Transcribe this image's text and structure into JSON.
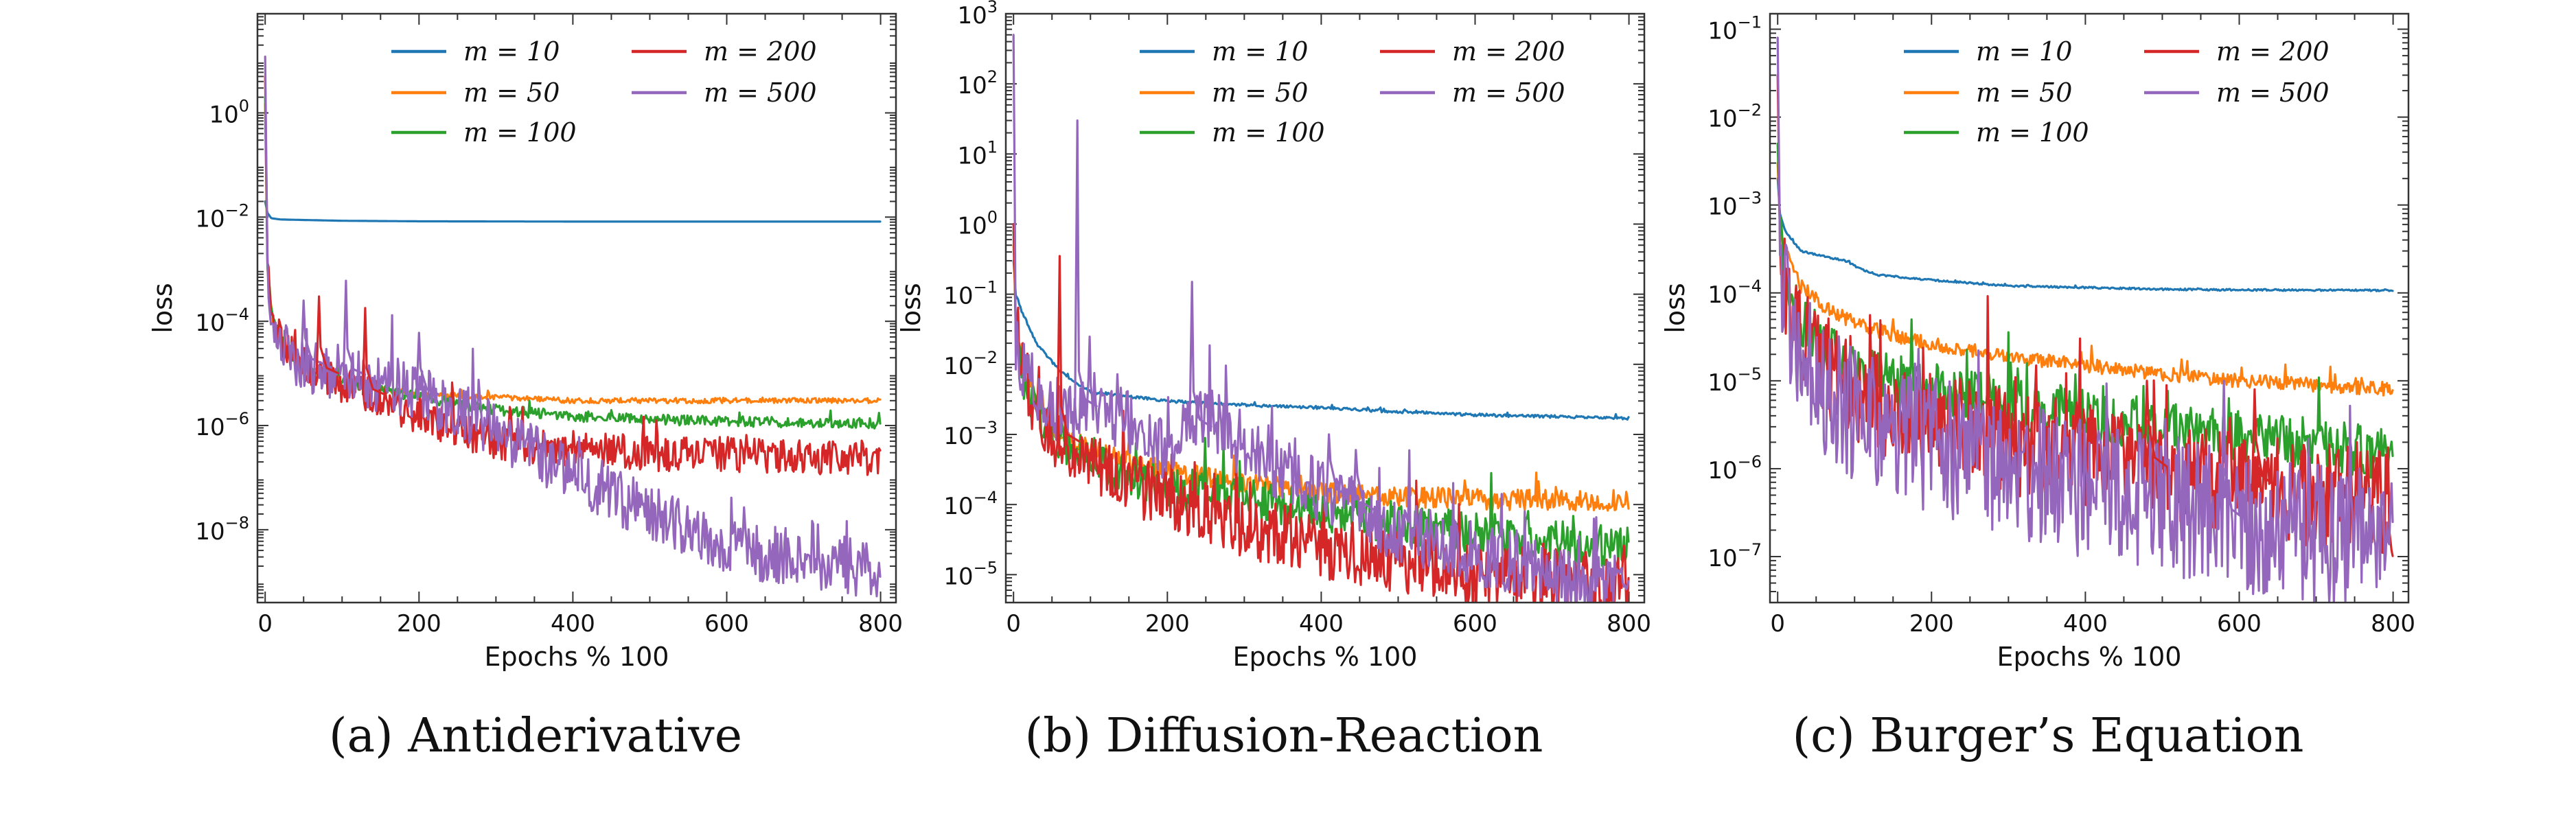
{
  "colors": {
    "m10": "#1f77b4",
    "m50": "#ff7f0e",
    "m100": "#2ca02c",
    "m200": "#d62728",
    "m500": "#9467bd"
  },
  "chart_data": [
    {
      "type": "line",
      "caption": "(a) Antiderivative",
      "xlabel": "Epochs % 100",
      "ylabel": "loss",
      "yscale": "log",
      "xlim": [
        -10,
        820
      ],
      "ylim": [
        4e-10,
        80
      ],
      "xticks": [
        0,
        200,
        400,
        600,
        800
      ],
      "yticks": [
        {
          "exp": 0,
          "label": "10"
        },
        {
          "exp": -2,
          "label": "10"
        },
        {
          "exp": -4,
          "label": "10"
        },
        {
          "exp": -6,
          "label": "10"
        },
        {
          "exp": -8,
          "label": "10"
        }
      ],
      "series": [
        {
          "name": "m = 10",
          "color": "#1f77b4",
          "noise": 0,
          "x": [
            0,
            3,
            8,
            20,
            50,
            100,
            200,
            400,
            600,
            800
          ],
          "y": [
            0.02,
            0.012,
            0.0095,
            0.009,
            0.0088,
            0.0085,
            0.0083,
            0.0082,
            0.0082,
            0.0082
          ]
        },
        {
          "name": "m = 50",
          "color": "#ff7f0e",
          "noise": 0.05,
          "x": [
            0,
            3,
            10,
            30,
            60,
            100,
            150,
            200,
            300,
            400,
            500,
            600,
            800
          ],
          "y": [
            1.5,
            0.001,
            0.0001,
            2.5e-05,
            1.2e-05,
            7e-06,
            5e-06,
            4e-06,
            3.5e-06,
            3e-06,
            3e-06,
            3e-06,
            3e-06
          ]
        },
        {
          "name": "m = 100",
          "color": "#2ca02c",
          "noise": 0.1,
          "x": [
            0,
            3,
            10,
            30,
            60,
            100,
            150,
            200,
            300,
            400,
            500,
            600,
            800
          ],
          "y": [
            2,
            0.001,
            0.0001,
            2.5e-05,
            1.2e-05,
            7e-06,
            5e-06,
            3.5e-06,
            2e-06,
            1.5e-06,
            1.3e-06,
            1.2e-06,
            1.1e-06
          ]
        },
        {
          "name": "m = 200",
          "color": "#d62728",
          "noise": 0.35,
          "x": [
            0,
            3,
            10,
            30,
            60,
            100,
            150,
            200,
            250,
            300,
            350,
            400,
            500,
            600,
            700,
            800
          ],
          "y": [
            5,
            0.001,
            0.0001,
            2.5e-05,
            1.2e-05,
            6e-06,
            3e-06,
            1.5e-06,
            8e-07,
            5e-07,
            4e-07,
            3.5e-07,
            3e-07,
            2.8e-07,
            2.6e-07,
            2.5e-07
          ]
        },
        {
          "name": "m = 500",
          "color": "#9467bd",
          "noise": 0.55,
          "x": [
            0,
            3,
            10,
            30,
            60,
            100,
            150,
            200,
            250,
            300,
            350,
            400,
            450,
            500,
            550,
            600,
            650,
            700,
            750,
            800
          ],
          "y": [
            12,
            0.001,
            0.0001,
            2.5e-05,
            1.2e-05,
            1e-05,
            6e-06,
            4e-06,
            2e-06,
            8e-07,
            3e-07,
            1.2e-07,
            5e-08,
            2e-08,
            1e-08,
            5e-09,
            3.5e-09,
            2.5e-09,
            2e-09,
            1.8e-09
          ]
        }
      ],
      "spikes": [
        {
          "series": 4,
          "x": 50,
          "y": 0.00025
        },
        {
          "series": 4,
          "x": 105,
          "y": 0.0006
        },
        {
          "series": 3,
          "x": 70,
          "y": 0.0003
        },
        {
          "series": 3,
          "x": 130,
          "y": 0.00018
        },
        {
          "series": 4,
          "x": 200,
          "y": 6e-05
        }
      ]
    },
    {
      "type": "line",
      "caption": "(b) Diffusion-Reaction",
      "xlabel": "Epochs % 100",
      "ylabel": "loss",
      "yscale": "log",
      "xlim": [
        -10,
        820
      ],
      "ylim": [
        4e-06,
        1000
      ],
      "xticks": [
        0,
        200,
        400,
        600,
        800
      ],
      "yticks": [
        {
          "exp": 3,
          "label": "10"
        },
        {
          "exp": 2,
          "label": "10"
        },
        {
          "exp": 1,
          "label": "10"
        },
        {
          "exp": 0,
          "label": "10"
        },
        {
          "exp": -1,
          "label": "10"
        },
        {
          "exp": -2,
          "label": "10"
        },
        {
          "exp": -3,
          "label": "10"
        },
        {
          "exp": -4,
          "label": "10"
        },
        {
          "exp": -5,
          "label": "10"
        }
      ],
      "series": [
        {
          "name": "m = 10",
          "color": "#1f77b4",
          "noise": 0.02,
          "x": [
            0,
            3,
            10,
            30,
            60,
            100,
            200,
            300,
            400,
            500,
            600,
            800
          ],
          "y": [
            0.3,
            0.1,
            0.06,
            0.02,
            0.008,
            0.004,
            0.003,
            0.0026,
            0.0024,
            0.0021,
            0.0019,
            0.0017
          ]
        },
        {
          "name": "m = 50",
          "color": "#ff7f0e",
          "noise": 0.15,
          "x": [
            0,
            3,
            10,
            30,
            60,
            100,
            150,
            200,
            300,
            400,
            500,
            600,
            800
          ],
          "y": [
            0.5,
            0.05,
            0.01,
            0.003,
            0.001,
            0.0006,
            0.0004,
            0.0003,
            0.0002,
            0.00015,
            0.00013,
            0.00012,
            0.00011
          ]
        },
        {
          "name": "m = 100",
          "color": "#2ca02c",
          "noise": 0.3,
          "x": [
            0,
            3,
            10,
            30,
            60,
            100,
            150,
            200,
            300,
            400,
            500,
            600,
            700,
            800
          ],
          "y": [
            0.8,
            0.05,
            0.008,
            0.002,
            0.0008,
            0.0004,
            0.00025,
            0.00018,
            0.00012,
            8e-05,
            5.5e-05,
            4e-05,
            3e-05,
            2.5e-05
          ]
        },
        {
          "name": "m = 200",
          "color": "#d62728",
          "noise": 0.45,
          "x": [
            0,
            3,
            10,
            30,
            60,
            100,
            150,
            200,
            300,
            400,
            500,
            600,
            700,
            800
          ],
          "y": [
            1,
            0.05,
            0.01,
            0.002,
            0.0008,
            0.0004,
            0.0002,
            0.00012,
            5e-05,
            2.5e-05,
            1.5e-05,
            1e-05,
            8e-06,
            7e-06
          ]
        },
        {
          "name": "m = 500",
          "color": "#9467bd",
          "noise": 0.45,
          "x": [
            0,
            3,
            10,
            30,
            60,
            100,
            150,
            200,
            250,
            300,
            400,
            500,
            600,
            700,
            800
          ],
          "y": [
            500,
            0.02,
            0.01,
            0.004,
            0.002,
            0.003,
            0.0015,
            0.0006,
            0.002,
            0.0006,
            0.00015,
            4e-05,
            2e-05,
            1e-05,
            7e-06
          ]
        }
      ],
      "spikes": [
        {
          "series": 4,
          "x": 83,
          "y": 30
        },
        {
          "series": 4,
          "x": 232,
          "y": 0.15
        },
        {
          "series": 3,
          "x": 60,
          "y": 0.35
        },
        {
          "series": 4,
          "x": 410,
          "y": 0.001
        },
        {
          "series": 4,
          "x": 445,
          "y": 0.0006
        }
      ]
    },
    {
      "type": "line",
      "caption": "(c) Burger’s Equation",
      "xlabel": "Epochs % 100",
      "ylabel": "loss",
      "yscale": "log",
      "xlim": [
        -10,
        820
      ],
      "ylim": [
        3e-08,
        0.15
      ],
      "xticks": [
        0,
        200,
        400,
        600,
        800
      ],
      "yticks": [
        {
          "exp": -1,
          "label": "10"
        },
        {
          "exp": -2,
          "label": "10"
        },
        {
          "exp": -3,
          "label": "10"
        },
        {
          "exp": -4,
          "label": "10"
        },
        {
          "exp": -5,
          "label": "10"
        },
        {
          "exp": -6,
          "label": "10"
        },
        {
          "exp": -7,
          "label": "10"
        }
      ],
      "series": [
        {
          "name": "m = 10",
          "color": "#1f77b4",
          "noise": 0.01,
          "x": [
            0,
            3,
            10,
            30,
            60,
            90,
            105,
            130,
            200,
            300,
            400,
            500,
            600,
            800
          ],
          "y": [
            0.002,
            0.0008,
            0.0005,
            0.0003,
            0.00026,
            0.00023,
            0.00019,
            0.00016,
            0.00014,
            0.00012,
            0.000115,
            0.00011,
            0.000108,
            0.000107
          ]
        },
        {
          "name": "m = 50",
          "color": "#ff7f0e",
          "noise": 0.08,
          "x": [
            0,
            3,
            10,
            30,
            60,
            100,
            150,
            200,
            300,
            400,
            500,
            600,
            700,
            800
          ],
          "y": [
            0.003,
            0.0006,
            0.0003,
            0.00012,
            7e-05,
            4.5e-05,
            3.3e-05,
            2.6e-05,
            1.9e-05,
            1.5e-05,
            1.2e-05,
            1e-05,
            9e-06,
            8e-06
          ]
        },
        {
          "name": "m = 100",
          "color": "#2ca02c",
          "noise": 0.3,
          "x": [
            0,
            3,
            10,
            30,
            60,
            100,
            150,
            200,
            300,
            400,
            500,
            600,
            700,
            800
          ],
          "y": [
            0.005,
            0.0005,
            0.00015,
            5e-05,
            2.5e-05,
            1.5e-05,
            1e-05,
            8e-06,
            5.5e-06,
            4e-06,
            3e-06,
            2.3e-06,
            1.8e-06,
            1.5e-06
          ]
        },
        {
          "name": "m = 200",
          "color": "#d62728",
          "noise": 0.6,
          "x": [
            0,
            3,
            10,
            30,
            60,
            100,
            150,
            200,
            300,
            400,
            500,
            600,
            700,
            800
          ],
          "y": [
            0.03,
            0.0004,
            0.0001,
            3e-05,
            1.4e-05,
            8e-06,
            5e-06,
            3.5e-06,
            2e-06,
            1.4e-06,
            1e-06,
            7e-07,
            5e-07,
            4e-07
          ]
        },
        {
          "name": "m = 500",
          "color": "#9467bd",
          "noise": 0.8,
          "x": [
            0,
            3,
            10,
            30,
            60,
            100,
            150,
            200,
            300,
            400,
            500,
            600,
            700,
            800
          ],
          "y": [
            0.08,
            0.0003,
            8e-05,
            2e-05,
            8e-06,
            4e-06,
            2.5e-06,
            1.8e-06,
            1e-06,
            6e-07,
            4e-07,
            2.5e-07,
            1.8e-07,
            1.5e-07
          ]
        }
      ],
      "spikes": [
        {
          "series": 4,
          "x": 580,
          "y": 1e-05
        },
        {
          "series": 3,
          "x": 480,
          "y": 1e-05
        },
        {
          "series": 3,
          "x": 620,
          "y": 8e-06
        }
      ]
    }
  ]
}
